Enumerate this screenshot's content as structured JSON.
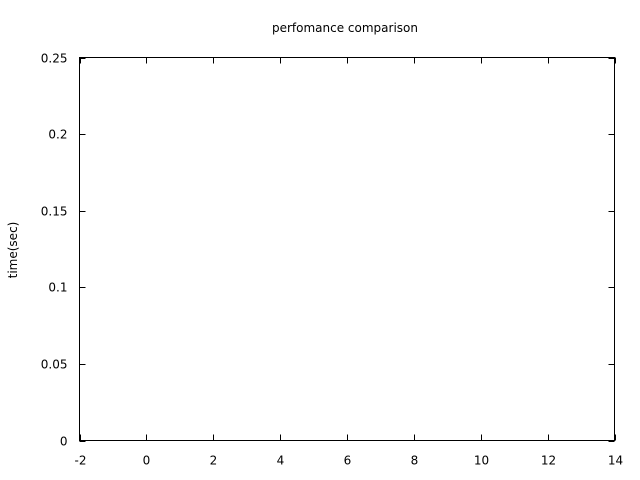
{
  "chart_data": {
    "type": "line",
    "title": "perfomance comparison",
    "xlabel": "",
    "ylabel": "time(sec)",
    "xlim": [
      -2,
      14
    ],
    "ylim": [
      0,
      0.25
    ],
    "x_ticks": [
      -2,
      0,
      2,
      4,
      6,
      8,
      10,
      12,
      14
    ],
    "y_ticks": [
      0,
      0.05,
      0.1,
      0.15,
      0.2,
      0.25
    ],
    "x_tick_labels": [
      "-2",
      "0",
      "2",
      "4",
      "6",
      "8",
      "10",
      "12",
      "14"
    ],
    "y_tick_labels": [
      "0",
      "0.05",
      "0.1",
      "0.15",
      "0.2",
      "0.25"
    ],
    "grid": false,
    "legend": "none",
    "series": []
  }
}
